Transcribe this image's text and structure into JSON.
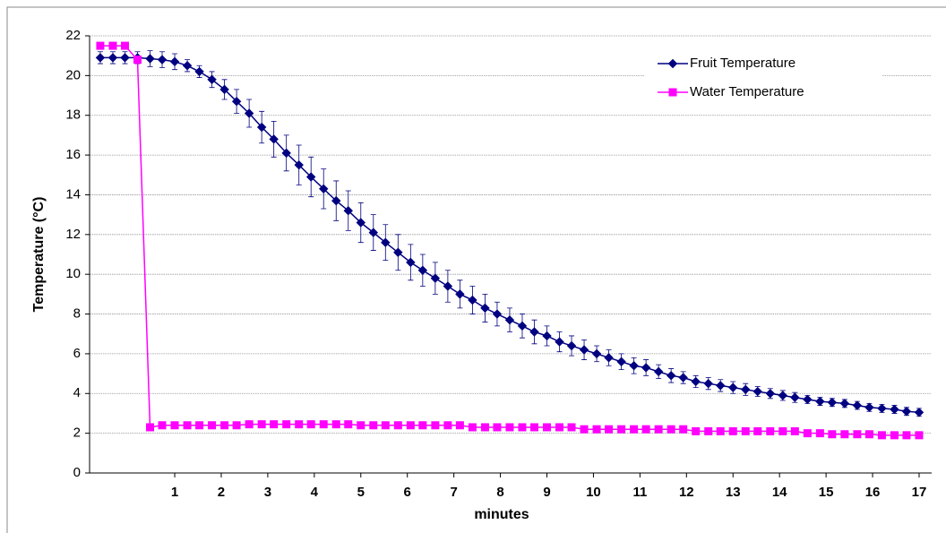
{
  "chart_data": {
    "type": "line",
    "xlabel": "minutes",
    "ylabel": "Temperature (°C)",
    "x": [
      -0.6,
      -0.33,
      -0.07,
      0.2,
      0.47,
      0.73,
      1.0,
      1.27,
      1.53,
      1.8,
      2.07,
      2.33,
      2.6,
      2.87,
      3.13,
      3.4,
      3.67,
      3.93,
      4.2,
      4.47,
      4.73,
      5.0,
      5.27,
      5.53,
      5.8,
      6.07,
      6.33,
      6.6,
      6.87,
      7.13,
      7.4,
      7.67,
      7.93,
      8.2,
      8.47,
      8.73,
      9.0,
      9.27,
      9.53,
      9.8,
      10.07,
      10.33,
      10.6,
      10.87,
      11.13,
      11.4,
      11.67,
      11.93,
      12.2,
      12.47,
      12.73,
      13.0,
      13.27,
      13.53,
      13.8,
      14.07,
      14.33,
      14.6,
      14.87,
      15.13,
      15.4,
      15.67,
      15.93,
      16.2,
      16.47,
      16.73,
      17.0
    ],
    "series": [
      {
        "name": "Fruit Temperature",
        "color": "#000080",
        "marker": "diamond",
        "values": [
          20.9,
          20.9,
          20.9,
          20.9,
          20.85,
          20.8,
          20.7,
          20.5,
          20.2,
          19.8,
          19.3,
          18.7,
          18.1,
          17.4,
          16.8,
          16.1,
          15.5,
          14.9,
          14.3,
          13.7,
          13.2,
          12.6,
          12.1,
          11.6,
          11.1,
          10.6,
          10.2,
          9.8,
          9.4,
          9.0,
          8.7,
          8.3,
          8.0,
          7.7,
          7.4,
          7.1,
          6.9,
          6.6,
          6.4,
          6.2,
          6.0,
          5.8,
          5.6,
          5.4,
          5.3,
          5.1,
          4.9,
          4.8,
          4.6,
          4.5,
          4.4,
          4.3,
          4.2,
          4.1,
          4.0,
          3.9,
          3.8,
          3.7,
          3.6,
          3.55,
          3.5,
          3.4,
          3.3,
          3.25,
          3.2,
          3.1,
          3.05
        ],
        "errors": [
          0.3,
          0.3,
          0.3,
          0.3,
          0.4,
          0.4,
          0.4,
          0.3,
          0.3,
          0.4,
          0.5,
          0.6,
          0.7,
          0.8,
          0.9,
          0.9,
          1.0,
          1.0,
          1.0,
          1.0,
          1.0,
          1.0,
          0.9,
          0.9,
          0.9,
          0.9,
          0.8,
          0.8,
          0.8,
          0.7,
          0.7,
          0.7,
          0.6,
          0.6,
          0.6,
          0.6,
          0.5,
          0.5,
          0.5,
          0.5,
          0.4,
          0.4,
          0.4,
          0.4,
          0.4,
          0.35,
          0.35,
          0.3,
          0.3,
          0.3,
          0.3,
          0.3,
          0.3,
          0.25,
          0.25,
          0.25,
          0.25,
          0.2,
          0.2,
          0.2,
          0.2,
          0.2,
          0.2,
          0.2,
          0.2,
          0.2,
          0.2
        ]
      },
      {
        "name": "Water Temperature",
        "color": "#ff00ff",
        "marker": "square",
        "values": [
          21.5,
          21.5,
          21.5,
          20.8,
          2.3,
          2.4,
          2.4,
          2.4,
          2.4,
          2.4,
          2.4,
          2.4,
          2.45,
          2.45,
          2.45,
          2.45,
          2.45,
          2.45,
          2.45,
          2.45,
          2.45,
          2.4,
          2.4,
          2.4,
          2.4,
          2.4,
          2.4,
          2.4,
          2.4,
          2.4,
          2.3,
          2.3,
          2.3,
          2.3,
          2.3,
          2.3,
          2.3,
          2.3,
          2.3,
          2.2,
          2.2,
          2.2,
          2.2,
          2.2,
          2.2,
          2.2,
          2.2,
          2.2,
          2.1,
          2.1,
          2.1,
          2.1,
          2.1,
          2.1,
          2.1,
          2.1,
          2.1,
          2.0,
          2.0,
          1.95,
          1.95,
          1.95,
          1.95,
          1.9,
          1.9,
          1.9,
          1.9
        ]
      }
    ],
    "xlim": [
      -0.83,
      17.27
    ],
    "xticks": [
      1,
      2,
      3,
      4,
      5,
      6,
      7,
      8,
      9,
      10,
      11,
      12,
      13,
      14,
      15,
      16,
      17
    ],
    "ylim": [
      0,
      22
    ],
    "yticks": [
      0,
      2,
      4,
      6,
      8,
      10,
      12,
      14,
      16,
      18,
      20,
      22
    ],
    "grid": true,
    "legend": "upper right"
  }
}
